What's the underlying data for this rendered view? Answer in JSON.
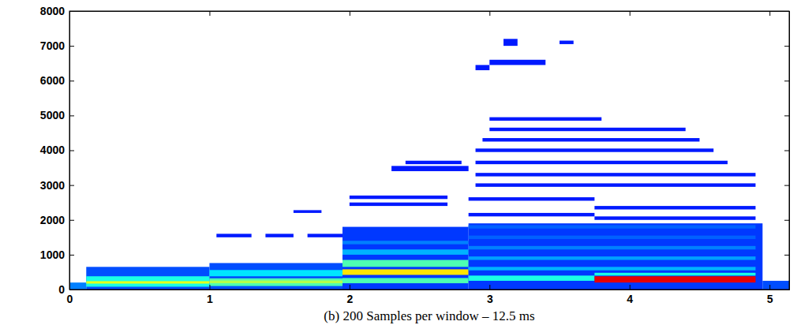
{
  "chart_data": {
    "type": "heatmap",
    "title": "(b) 200 Samples per window – 12.5 ms",
    "xlim": [
      0,
      5.14
    ],
    "xticks": [
      0,
      1,
      2,
      3,
      4,
      5
    ],
    "ylim": [
      0,
      8000
    ],
    "yticks": [
      0,
      1000,
      2000,
      3000,
      4000,
      5000,
      6000,
      7000,
      8000
    ],
    "grid": false,
    "color_range": [
      0,
      1
    ],
    "cells": [
      {
        "t": [
          0.0,
          0.12
        ],
        "f": [
          0,
          200
        ],
        "value": 0.25
      },
      {
        "t": [
          0.12,
          1.0
        ],
        "f": [
          0,
          650
        ],
        "value": 0.2
      },
      {
        "t": [
          0.12,
          1.0
        ],
        "f": [
          80,
          380
        ],
        "value": 0.4
      },
      {
        "t": [
          0.12,
          1.0
        ],
        "f": [
          170,
          240
        ],
        "value": 0.6
      },
      {
        "t": [
          1.0,
          1.95
        ],
        "f": [
          0,
          760
        ],
        "value": 0.2
      },
      {
        "t": [
          1.0,
          1.95
        ],
        "f": [
          380,
          560
        ],
        "value": 0.35
      },
      {
        "t": [
          1.0,
          1.95
        ],
        "f": [
          100,
          320
        ],
        "value": 0.45
      },
      {
        "t": [
          1.0,
          1.95
        ],
        "f": [
          180,
          260
        ],
        "value": 0.55
      },
      {
        "t": [
          1.05,
          1.3
        ],
        "f": [
          1500,
          1600
        ],
        "value": 0.15
      },
      {
        "t": [
          1.4,
          1.6
        ],
        "f": [
          1500,
          1600
        ],
        "value": 0.15
      },
      {
        "t": [
          1.7,
          1.95
        ],
        "f": [
          1500,
          1600
        ],
        "value": 0.15
      },
      {
        "t": [
          1.6,
          1.8
        ],
        "f": [
          2200,
          2280
        ],
        "value": 0.15
      },
      {
        "t": [
          1.95,
          2.85
        ],
        "f": [
          0,
          1800
        ],
        "value": 0.18
      },
      {
        "t": [
          1.95,
          2.85
        ],
        "f": [
          1000,
          1150
        ],
        "value": 0.3
      },
      {
        "t": [
          1.95,
          2.85
        ],
        "f": [
          650,
          850
        ],
        "value": 0.45
      },
      {
        "t": [
          1.95,
          2.85
        ],
        "f": [
          420,
          580
        ],
        "value": 0.65
      },
      {
        "t": [
          1.95,
          2.85
        ],
        "f": [
          180,
          330
        ],
        "value": 0.45
      },
      {
        "t": [
          1.95,
          2.85
        ],
        "f": [
          1300,
          1400
        ],
        "value": 0.25
      },
      {
        "t": [
          2.0,
          2.7
        ],
        "f": [
          2400,
          2500
        ],
        "value": 0.15
      },
      {
        "t": [
          2.0,
          2.7
        ],
        "f": [
          2600,
          2700
        ],
        "value": 0.15
      },
      {
        "t": [
          2.3,
          2.85
        ],
        "f": [
          3400,
          3550
        ],
        "value": 0.15
      },
      {
        "t": [
          2.4,
          2.8
        ],
        "f": [
          3600,
          3700
        ],
        "value": 0.15
      },
      {
        "t": [
          2.85,
          4.95
        ],
        "f": [
          0,
          1900
        ],
        "value": 0.18
      },
      {
        "t": [
          2.85,
          3.75
        ],
        "f": [
          250,
          400
        ],
        "value": 0.4
      },
      {
        "t": [
          2.85,
          4.9
        ],
        "f": [
          550,
          650
        ],
        "value": 0.3
      },
      {
        "t": [
          2.85,
          4.9
        ],
        "f": [
          850,
          950
        ],
        "value": 0.28
      },
      {
        "t": [
          2.85,
          4.9
        ],
        "f": [
          1150,
          1250
        ],
        "value": 0.25
      },
      {
        "t": [
          2.85,
          4.9
        ],
        "f": [
          1450,
          1550
        ],
        "value": 0.22
      },
      {
        "t": [
          2.85,
          4.9
        ],
        "f": [
          1750,
          1850
        ],
        "value": 0.22
      },
      {
        "t": [
          2.85,
          3.75
        ],
        "f": [
          2100,
          2200
        ],
        "value": 0.15
      },
      {
        "t": [
          2.85,
          3.75
        ],
        "f": [
          2550,
          2650
        ],
        "value": 0.15
      },
      {
        "t": [
          2.9,
          4.9
        ],
        "f": [
          2950,
          3050
        ],
        "value": 0.15
      },
      {
        "t": [
          2.9,
          4.9
        ],
        "f": [
          3250,
          3350
        ],
        "value": 0.15
      },
      {
        "t": [
          2.9,
          4.7
        ],
        "f": [
          3600,
          3700
        ],
        "value": 0.15
      },
      {
        "t": [
          2.9,
          4.6
        ],
        "f": [
          3950,
          4050
        ],
        "value": 0.15
      },
      {
        "t": [
          2.95,
          4.5
        ],
        "f": [
          4250,
          4350
        ],
        "value": 0.15
      },
      {
        "t": [
          3.0,
          4.4
        ],
        "f": [
          4550,
          4650
        ],
        "value": 0.15
      },
      {
        "t": [
          3.0,
          3.8
        ],
        "f": [
          4850,
          4950
        ],
        "value": 0.15
      },
      {
        "t": [
          3.75,
          4.9
        ],
        "f": [
          2000,
          2100
        ],
        "value": 0.15
      },
      {
        "t": [
          3.75,
          4.9
        ],
        "f": [
          2300,
          2400
        ],
        "value": 0.15
      },
      {
        "t": [
          3.75,
          4.9
        ],
        "f": [
          200,
          380
        ],
        "value": 0.9
      },
      {
        "t": [
          3.75,
          4.9
        ],
        "f": [
          400,
          480
        ],
        "value": 0.4
      },
      {
        "t": [
          2.9,
          3.0
        ],
        "f": [
          6300,
          6450
        ],
        "value": 0.15
      },
      {
        "t": [
          3.0,
          3.4
        ],
        "f": [
          6450,
          6600
        ],
        "value": 0.15
      },
      {
        "t": [
          3.1,
          3.2
        ],
        "f": [
          7000,
          7200
        ],
        "value": 0.15
      },
      {
        "t": [
          3.5,
          3.6
        ],
        "f": [
          7050,
          7150
        ],
        "value": 0.15
      },
      {
        "t": [
          4.95,
          5.14
        ],
        "f": [
          0,
          250
        ],
        "value": 0.2
      }
    ]
  }
}
